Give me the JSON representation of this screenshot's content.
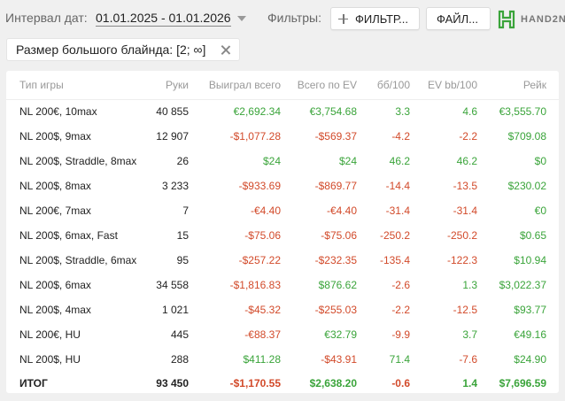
{
  "toolbar": {
    "date_label": "Интервал дат:",
    "date_range": "01.01.2025 - 01.01.2026",
    "filters_label": "Фильтры:",
    "filter_button": "ФИЛЬТР...",
    "file_button": "ФАЙЛ...",
    "logo_text": "HAND2N"
  },
  "chip": {
    "label": "Размер большого блайнда: [2; ∞]"
  },
  "colors": {
    "positive": "#3aa43a",
    "negative": "#d24a2a",
    "logo_green": "#3aa43a"
  },
  "table": {
    "headers": [
      "Тип игры",
      "Руки",
      "Выиграл всего",
      "Всего по EV",
      "бб/100",
      "EV bb/100",
      "Рейк"
    ],
    "rows": [
      [
        "NL 200€, 10max",
        "40 855",
        "€2,692.34",
        "€3,754.68",
        "3.3",
        "4.6",
        "€3,555.70"
      ],
      [
        "NL 200$, 9max",
        "12 907",
        "-$1,077.28",
        "-$569.37",
        "-4.2",
        "-2.2",
        "$709.08"
      ],
      [
        "NL 200$, Straddle, 8max",
        "26",
        "$24",
        "$24",
        "46.2",
        "46.2",
        "$0"
      ],
      [
        "NL 200$, 8max",
        "3 233",
        "-$933.69",
        "-$869.77",
        "-14.4",
        "-13.5",
        "$230.02"
      ],
      [
        "NL 200€, 7max",
        "7",
        "-€4.40",
        "-€4.40",
        "-31.4",
        "-31.4",
        "€0"
      ],
      [
        "NL 200$, 6max, Fast",
        "15",
        "-$75.06",
        "-$75.06",
        "-250.2",
        "-250.2",
        "$0.65"
      ],
      [
        "NL 200$, Straddle, 6max",
        "95",
        "-$257.22",
        "-$232.35",
        "-135.4",
        "-122.3",
        "$10.94"
      ],
      [
        "NL 200$, 6max",
        "34 558",
        "-$1,816.83",
        "$876.62",
        "-2.6",
        "1.3",
        "$3,022.37"
      ],
      [
        "NL 200$, 4max",
        "1 021",
        "-$45.32",
        "-$255.03",
        "-2.2",
        "-12.5",
        "$93.77"
      ],
      [
        "NL 200€, HU",
        "445",
        "-€88.37",
        "€32.79",
        "-9.9",
        "3.7",
        "€49.16"
      ],
      [
        "NL 200$, HU",
        "288",
        "$411.28",
        "-$43.91",
        "71.4",
        "-7.6",
        "$24.90"
      ]
    ],
    "total": [
      "ИТОГ",
      "93 450",
      "-$1,170.55",
      "$2,638.20",
      "-0.6",
      "1.4",
      "$7,696.59"
    ]
  }
}
